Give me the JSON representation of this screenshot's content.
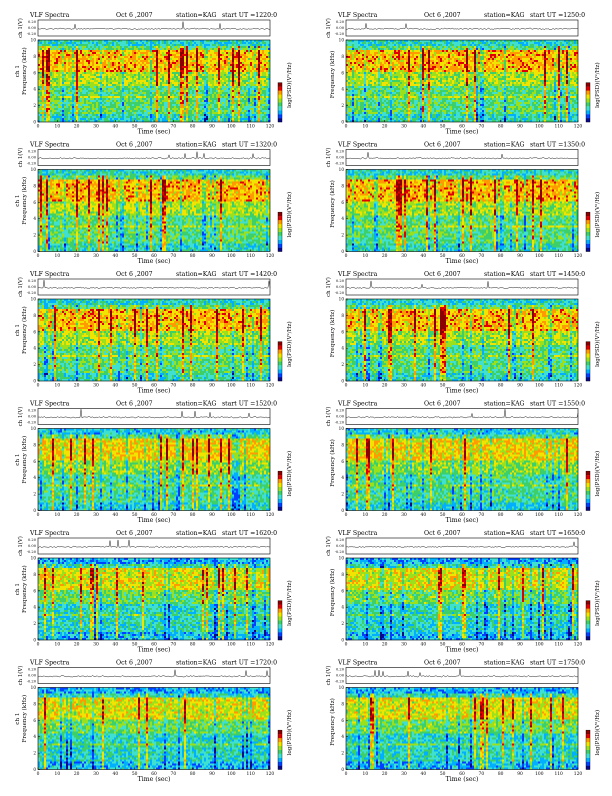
{
  "palette": [
    "#08088a",
    "#0040ff",
    "#00b0ff",
    "#40e0d0",
    "#3ccf6a",
    "#9be01c",
    "#f0e400",
    "#ff9a00",
    "#e00000",
    "#8a0000"
  ],
  "chart_data": [
    {
      "type": "heatmap",
      "title": "VLF Spectra",
      "date": "Oct 6 ,2007",
      "station": "station=KAG",
      "start": "start  UT  =1220:0",
      "trace_ylabel": "ch 1(V)",
      "trace_ticks": [
        "0.20",
        "0.00",
        "-0.20"
      ],
      "ylabel": "ch 1\nFrequency (kHz)",
      "xlabel": "Time  (sec)",
      "xlim": [
        0,
        120
      ],
      "ylim": [
        0,
        10
      ],
      "xticks": [
        0,
        10,
        20,
        30,
        40,
        50,
        60,
        70,
        80,
        90,
        100,
        110,
        120
      ],
      "yticks": [
        0,
        2,
        4,
        6,
        8,
        10
      ],
      "colorbar_label": "log(PSD)(V²/Hz)",
      "colorbar_ticks": [
        "",
        "",
        "",
        "",
        ""
      ]
    },
    {
      "type": "heatmap",
      "title": "VLF Spectra",
      "date": "Oct 6 ,2007",
      "station": "station=KAG",
      "start": "start  UT  =1250:0",
      "trace_ylabel": "ch 1(V)",
      "trace_ticks": [
        "0.20",
        "0.00",
        "-0.20"
      ],
      "ylabel": "Frequency (kHz)",
      "xlabel": "Time  (sec)",
      "xlim": [
        0,
        120
      ],
      "ylim": [
        0,
        10
      ],
      "xticks": [
        0,
        10,
        20,
        30,
        40,
        50,
        60,
        70,
        80,
        90,
        100,
        110,
        120
      ],
      "yticks": [
        0,
        2,
        4,
        6,
        8,
        10
      ],
      "colorbar_label": "log(PSD)(V²/Hz)",
      "colorbar_ticks": [
        "",
        "",
        "",
        "",
        ""
      ]
    },
    {
      "type": "heatmap",
      "title": "VLF Spectra",
      "date": "Oct 6 ,2007",
      "station": "station=KAG",
      "start": "start  UT  =1320:0",
      "trace_ylabel": "ch 1(V)",
      "trace_ticks": [
        "0.20",
        "0.00",
        "-0.20"
      ],
      "ylabel": "ch 1\nFrequency (kHz)",
      "xlabel": "Time  (sec)",
      "xlim": [
        0,
        120
      ],
      "ylim": [
        0,
        10
      ],
      "xticks": [
        0,
        10,
        20,
        30,
        40,
        50,
        60,
        70,
        80,
        90,
        100,
        110,
        120
      ],
      "yticks": [
        0,
        2,
        4,
        6,
        8,
        10
      ],
      "colorbar_label": "log(PSD)(V²/Hz)",
      "colorbar_ticks": [
        "",
        "",
        "",
        "",
        ""
      ]
    },
    {
      "type": "heatmap",
      "title": "VLF Spectra",
      "date": "Oct 6 ,2007",
      "station": "station=KAG",
      "start": "start  UT  =1350:0",
      "trace_ylabel": "ch 1(V)",
      "trace_ticks": [
        "0.20",
        "0.00",
        "-0.20"
      ],
      "ylabel": "Frequency (kHz)",
      "xlabel": "Time  (sec)",
      "xlim": [
        0,
        120
      ],
      "ylim": [
        0,
        10
      ],
      "xticks": [
        0,
        10,
        20,
        30,
        40,
        50,
        60,
        70,
        80,
        90,
        100,
        110,
        120
      ],
      "yticks": [
        0,
        2,
        4,
        6,
        8,
        10
      ],
      "colorbar_label": "log(PSD)(V²/Hz)",
      "colorbar_ticks": [
        "",
        "",
        "",
        "",
        ""
      ]
    },
    {
      "type": "heatmap",
      "title": "VLF Spectra",
      "date": "Oct 6 ,2007",
      "station": "station=KAG",
      "start": "start  UT  =1420:0",
      "trace_ylabel": "ch 1(V)",
      "trace_ticks": [
        "0.20",
        "0.00",
        "-0.20"
      ],
      "ylabel": "ch 1\nFrequency (kHz)",
      "xlabel": "Time  (sec)",
      "xlim": [
        0,
        120
      ],
      "ylim": [
        0,
        10
      ],
      "xticks": [
        0,
        10,
        20,
        30,
        40,
        50,
        60,
        70,
        80,
        90,
        100,
        110,
        120
      ],
      "yticks": [
        0,
        2,
        4,
        6,
        8,
        10
      ],
      "colorbar_label": "log(PSD)(V²/Hz)",
      "colorbar_ticks": [
        "",
        "",
        "",
        "",
        ""
      ]
    },
    {
      "type": "heatmap",
      "title": "VLF Spectra",
      "date": "Oct 6 ,2007",
      "station": "station=KAG",
      "start": "start  UT  =1450:0",
      "trace_ylabel": "ch 1(V)",
      "trace_ticks": [
        "0.20",
        "0.00",
        "-0.20"
      ],
      "ylabel": "Frequency (kHz)",
      "xlabel": "Time  (sec)",
      "xlim": [
        0,
        120
      ],
      "ylim": [
        0,
        10
      ],
      "xticks": [
        0,
        10,
        20,
        30,
        40,
        50,
        60,
        70,
        80,
        90,
        100,
        110,
        120
      ],
      "yticks": [
        0,
        2,
        4,
        6,
        8,
        10
      ],
      "colorbar_label": "log(PSD)(V²/Hz)",
      "colorbar_ticks": [
        "",
        "",
        "",
        "",
        ""
      ]
    },
    {
      "type": "heatmap",
      "title": "VLF Spectra",
      "date": "Oct 6 ,2007",
      "station": "station=KAG",
      "start": "start  UT  =1520:0",
      "trace_ylabel": "ch 1(V)",
      "trace_ticks": [
        "0.20",
        "0.00",
        "-0.20"
      ],
      "ylabel": "ch 1\nFrequency (kHz)",
      "xlabel": "Time  (sec)",
      "xlim": [
        0,
        120
      ],
      "ylim": [
        0,
        10
      ],
      "xticks": [
        0,
        10,
        20,
        30,
        40,
        50,
        60,
        70,
        80,
        90,
        100,
        110,
        120
      ],
      "yticks": [
        0,
        2,
        4,
        6,
        8,
        10
      ],
      "colorbar_label": "log(PSD)(V²/Hz)",
      "colorbar_ticks": [
        "",
        "",
        "",
        "",
        ""
      ]
    },
    {
      "type": "heatmap",
      "title": "VLF Spectra",
      "date": "Oct 6 ,2007",
      "station": "station=KAG",
      "start": "start  UT  =1550:0",
      "trace_ylabel": "ch 1(V)",
      "trace_ticks": [
        "0.20",
        "0.00",
        "-0.20"
      ],
      "ylabel": "Frequency (kHz)",
      "xlabel": "Time  (sec)",
      "xlim": [
        0,
        120
      ],
      "ylim": [
        0,
        10
      ],
      "xticks": [
        0,
        10,
        20,
        30,
        40,
        50,
        60,
        70,
        80,
        90,
        100,
        110,
        120
      ],
      "yticks": [
        0,
        2,
        4,
        6,
        8,
        10
      ],
      "colorbar_label": "log(PSD)(V²/Hz)",
      "colorbar_ticks": [
        "",
        "",
        "",
        "",
        ""
      ]
    },
    {
      "type": "heatmap",
      "title": "VLF Spectra",
      "date": "Oct 6 ,2007",
      "station": "station=KAG",
      "start": "start  UT  =1620:0",
      "trace_ylabel": "ch 1(V)",
      "trace_ticks": [
        "0.20",
        "0.00",
        "-0.20"
      ],
      "ylabel": "ch 1\nFrequency (kHz)",
      "xlabel": "Time  (sec)",
      "xlim": [
        0,
        120
      ],
      "ylim": [
        0,
        10
      ],
      "xticks": [
        0,
        10,
        20,
        30,
        40,
        50,
        60,
        70,
        80,
        90,
        100,
        110,
        120
      ],
      "yticks": [
        0,
        2,
        4,
        6,
        8,
        10
      ],
      "colorbar_label": "log(PSD)(V²/Hz)",
      "colorbar_ticks": [
        "",
        "",
        "",
        "",
        ""
      ]
    },
    {
      "type": "heatmap",
      "title": "VLF Spectra",
      "date": "Oct 6 ,2007",
      "station": "station=KAG",
      "start": "start  UT  =1650:0",
      "trace_ylabel": "ch 1(V)",
      "trace_ticks": [
        "0.20",
        "0.00",
        "-0.20"
      ],
      "ylabel": "Frequency (kHz)",
      "xlabel": "Time  (sec)",
      "xlim": [
        0,
        120
      ],
      "ylim": [
        0,
        10
      ],
      "xticks": [
        0,
        10,
        20,
        30,
        40,
        50,
        60,
        70,
        80,
        90,
        100,
        110,
        120
      ],
      "yticks": [
        0,
        2,
        4,
        6,
        8,
        10
      ],
      "colorbar_label": "log(PSD)(V²/Hz)",
      "colorbar_ticks": [
        "",
        "",
        "",
        "",
        ""
      ]
    },
    {
      "type": "heatmap",
      "title": "VLF Spectra",
      "date": "Oct 6 ,2007",
      "station": "station=KAG",
      "start": "start  UT  =1720:0",
      "trace_ylabel": "ch 1(V)",
      "trace_ticks": [
        "0.20",
        "0.00",
        "-0.20"
      ],
      "ylabel": "ch 1\nFrequency (kHz)",
      "xlabel": "Time  (sec)",
      "xlim": [
        0,
        120
      ],
      "ylim": [
        0,
        10
      ],
      "xticks": [
        0,
        10,
        20,
        30,
        40,
        50,
        60,
        70,
        80,
        90,
        100,
        110,
        120
      ],
      "yticks": [
        0,
        2,
        4,
        6,
        8,
        10
      ],
      "colorbar_label": "log(PSD)(V²/Hz)",
      "colorbar_ticks": [
        "",
        "",
        "",
        "",
        ""
      ]
    },
    {
      "type": "heatmap",
      "title": "VLF Spectra",
      "date": "Oct 6 ,2007",
      "station": "station=KAG",
      "start": "start  UT  =1750:0",
      "trace_ylabel": "ch 1(V)",
      "trace_ticks": [
        "0.20",
        "0.00",
        "-0.20"
      ],
      "ylabel": "Frequency (kHz)",
      "xlabel": "Time  (sec)",
      "xlim": [
        0,
        120
      ],
      "ylim": [
        0,
        10
      ],
      "xticks": [
        0,
        10,
        20,
        30,
        40,
        50,
        60,
        70,
        80,
        90,
        100,
        110,
        120
      ],
      "yticks": [
        0,
        2,
        4,
        6,
        8,
        10
      ],
      "colorbar_label": "log(PSD)(V²/Hz)",
      "colorbar_ticks": [
        "",
        "",
        "",
        "",
        ""
      ]
    }
  ]
}
